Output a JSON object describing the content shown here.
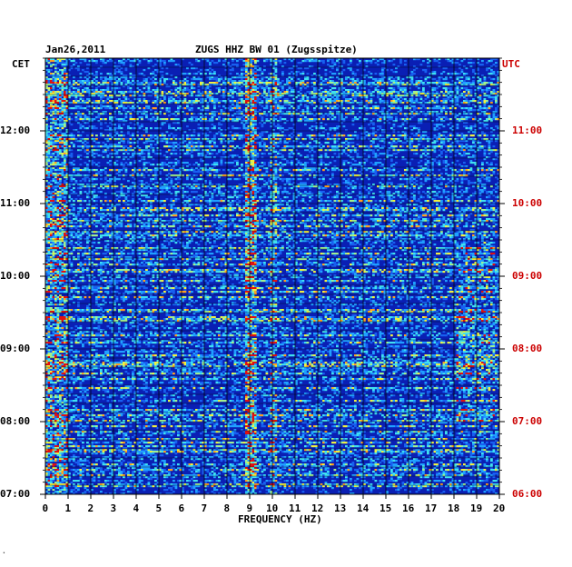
{
  "header": {
    "date": "Jan26,2011",
    "station": "ZUGS HHZ BW 01 (Zugsspitze)",
    "left_tz": "CET",
    "right_tz": "UTC"
  },
  "colors": {
    "background": "#ffffff",
    "plot_base": "#0a1fb4",
    "text": "#000000",
    "utc_text": "#cc0000"
  },
  "chart_data": {
    "type": "heatmap",
    "title": "ZUGS HHZ BW 01 (Zugsspitze)",
    "xlabel": "FREQUENCY (HZ)",
    "xlim": [
      0,
      20
    ],
    "x_ticks": [
      "0",
      "1",
      "2",
      "3",
      "4",
      "5",
      "6",
      "7",
      "8",
      "9",
      "10",
      "11",
      "12",
      "13",
      "14",
      "15",
      "16",
      "17",
      "18",
      "19",
      "20"
    ],
    "y_left_ticks": [
      "07:00",
      "08:00",
      "09:00",
      "10:00",
      "11:00",
      "12:00"
    ],
    "y_right_ticks": [
      "06:00",
      "07:00",
      "08:00",
      "09:00",
      "10:00",
      "11:00"
    ],
    "y_range_cet": [
      "07:00",
      "13:00"
    ],
    "grid": true,
    "colormap": "blue-cyan-yellow-red"
  }
}
